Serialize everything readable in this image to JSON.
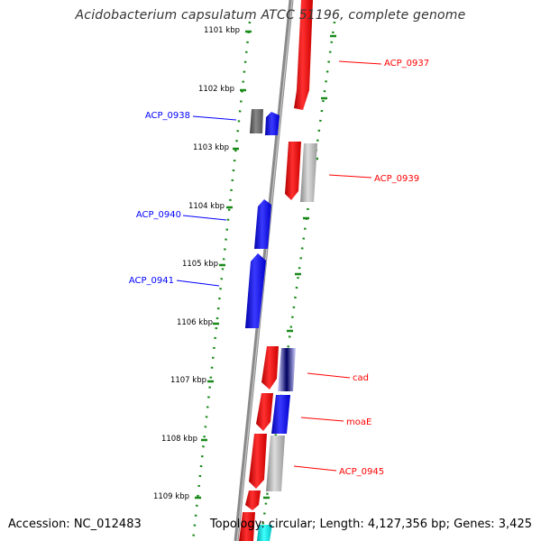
{
  "title": "Acidobacterium capsulatum ATCC 51196, complete genome",
  "footer": {
    "accession": "Accession: NC_012483",
    "topology": "Topology: circular; Length: 4,127,356 bp; Genes: 3,425"
  },
  "colors": {
    "forward": "#ff0000",
    "reverse": "#0000ff",
    "other": "#aaaaaa",
    "backbone": "#808080",
    "ticks": "#1a8a1a"
  },
  "kbp_labels": [
    "1101 kbp",
    "1102 kbp",
    "1103 kbp",
    "1104 kbp",
    "1105 kbp",
    "1106 kbp",
    "1107 kbp",
    "1108 kbp",
    "1109 kbp"
  ],
  "gene_labels": {
    "acp0937": "ACP_0937",
    "acp0938": "ACP_0938",
    "acp0939": "ACP_0939",
    "acp0940": "ACP_0940",
    "acp0941": "ACP_0941",
    "cad": "cad",
    "moaE": "moaE",
    "acp0945": "ACP_0945"
  }
}
